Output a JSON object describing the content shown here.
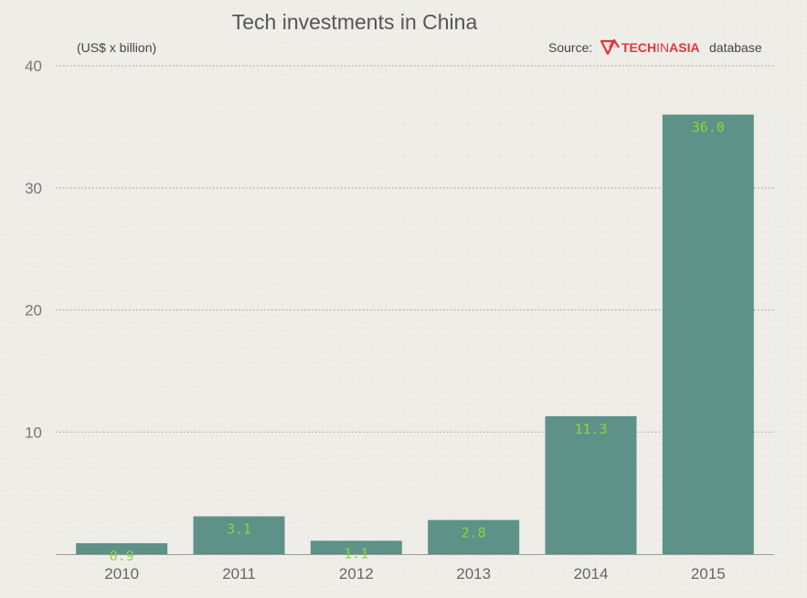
{
  "chart_data": {
    "type": "bar",
    "title": "Tech investments in China",
    "unit_label": "(US$ x billion)",
    "source": {
      "prefix": "Source:",
      "brand_part1": "TECH",
      "brand_part2": "IN",
      "brand_part3": "ASIA",
      "suffix": "database",
      "brand_color": "#e8323c"
    },
    "categories": [
      "2010",
      "2011",
      "2012",
      "2013",
      "2014",
      "2015"
    ],
    "values": [
      0.9,
      3.1,
      1.1,
      2.8,
      11.3,
      36.0
    ],
    "data_labels": [
      "0.9",
      "3.1",
      "1.1",
      "2.8",
      "11.3",
      "36.0"
    ],
    "ylim": [
      0,
      40
    ],
    "yticks": [
      10,
      20,
      30,
      40
    ],
    "grid": true,
    "bar_color": "#5e9188",
    "label_color": "#86d93a"
  }
}
